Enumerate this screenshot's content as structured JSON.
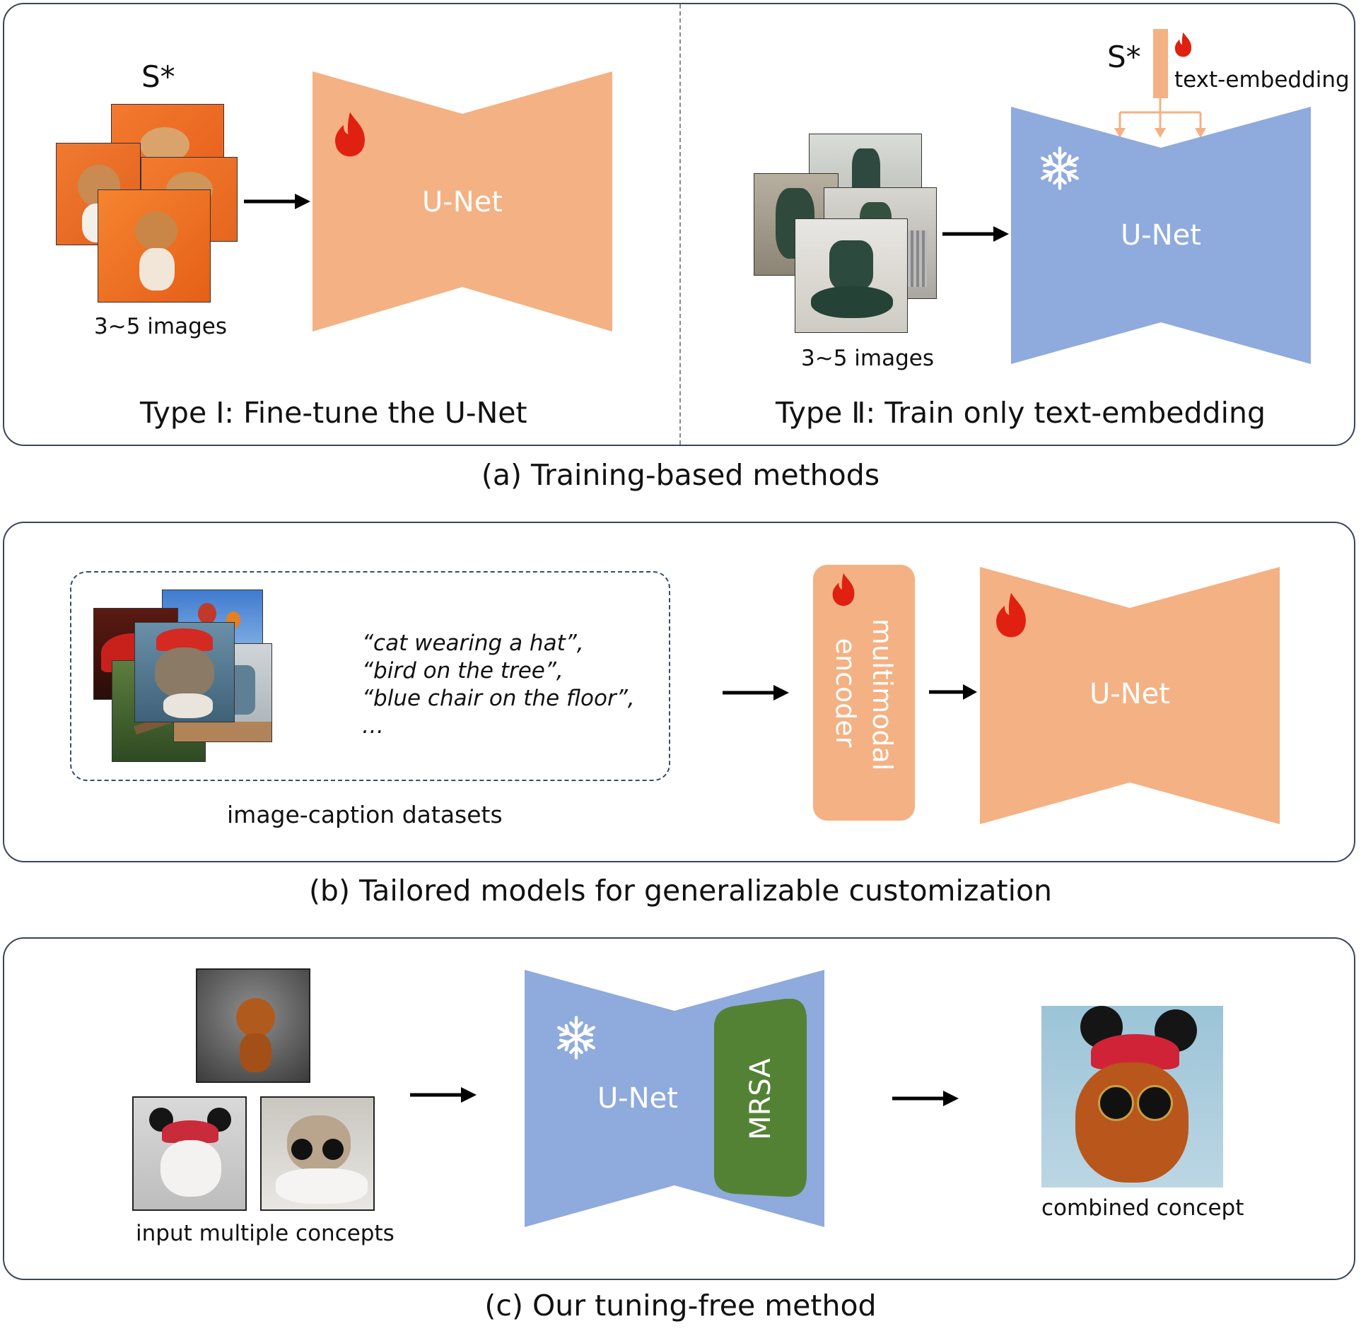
{
  "panel_a": {
    "caption": "(a) Training-based methods",
    "type1": {
      "title": "Type Ⅰ: Fine-tune the U-Net",
      "token": "S*",
      "images_label": "3~5 images",
      "unet_label": "U-Net"
    },
    "type2": {
      "title": "Type Ⅱ: Train only text-embedding",
      "token": "S*",
      "embedding_label": "text-embedding",
      "images_label": "3~5 images",
      "unet_label": "U-Net"
    }
  },
  "panel_b": {
    "caption": "(b) Tailored models for generalizable customization",
    "captions_list": [
      "“cat wearing a hat”,",
      "“bird on the tree”,",
      "“blue chair on the floor”,",
      "…"
    ],
    "dataset_label": "image-caption datasets",
    "encoder_label": "multimodal encoder",
    "unet_label": "U-Net"
  },
  "panel_c": {
    "caption": "(c) Our tuning-free method",
    "input_label": "input multiple concepts",
    "unet_label": "U-Net",
    "module_label": "MRSA",
    "output_label": "combined concept"
  },
  "colors": {
    "trainable_orange": "#f4b183",
    "frozen_blue": "#8faadc",
    "module_green": "#548235",
    "flame_red": "#e02010"
  }
}
